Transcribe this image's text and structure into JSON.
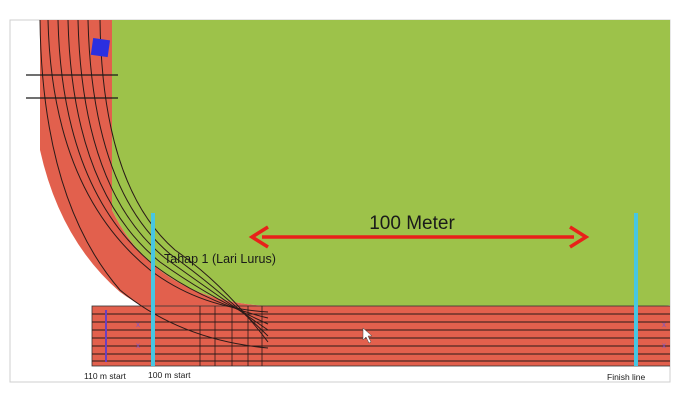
{
  "diagram": {
    "distance_label": "100 Meter",
    "stage_label": "Tahap 1 (Lari Lurus)",
    "start_110_label": "110 m start",
    "start_100_label": "100 m start",
    "finish_label": "Finish line",
    "colors": {
      "field": "#9dc24a",
      "track": "#e2604d",
      "lane_line": "#2a1a18",
      "start_finish_line": "#47c6e2",
      "arrow": "#e8211a",
      "marker": "#2b2fe0",
      "lane_marks": "#7a55c8"
    }
  }
}
